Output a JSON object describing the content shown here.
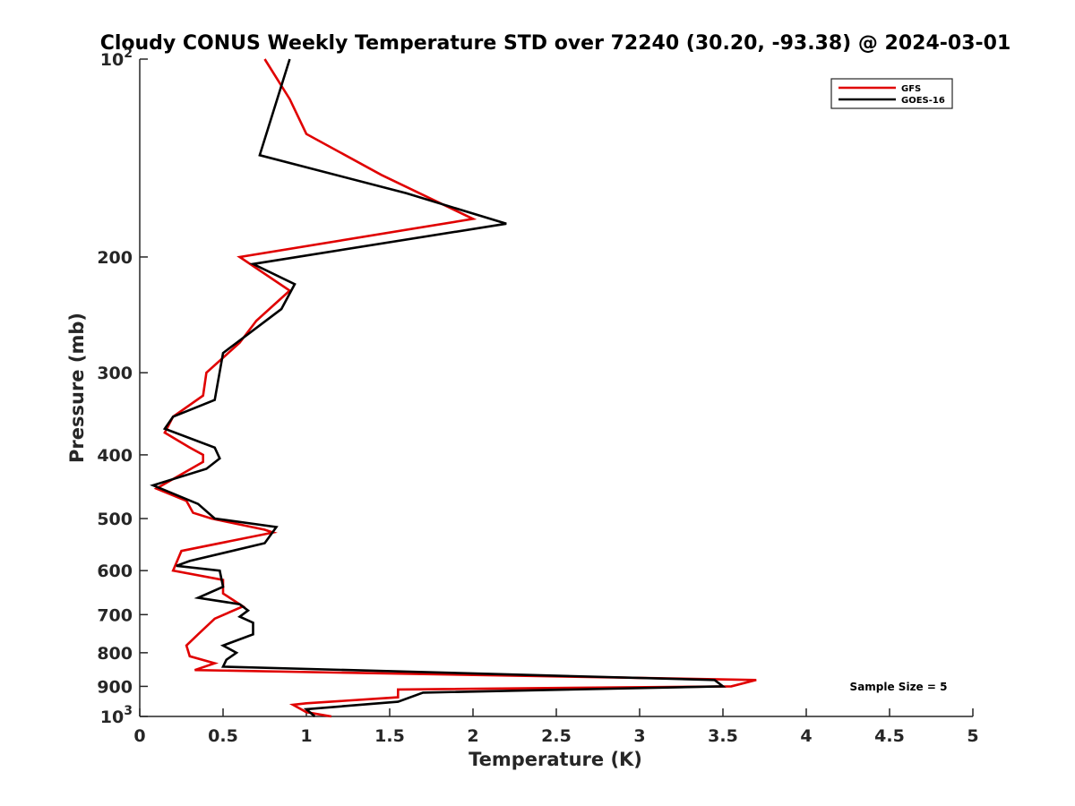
{
  "chart_data": {
    "type": "line",
    "title": "Cloudy CONUS Weekly Temperature STD over 72240 (30.20, -93.38) @ 2024-03-01",
    "xlabel": "Temperature (K)",
    "ylabel": "Pressure (mb)",
    "xlim": [
      0,
      5
    ],
    "ylim": [
      100,
      1000
    ],
    "y_scale": "log",
    "y_reversed": true,
    "x_ticks": [
      0,
      0.5,
      1,
      1.5,
      2,
      2.5,
      3,
      3.5,
      4,
      4.5,
      5
    ],
    "x_tick_labels": [
      "0",
      "0.5",
      "1",
      "1.5",
      "2",
      "2.5",
      "3",
      "3.5",
      "4",
      "4.5",
      "5"
    ],
    "y_ticks": [
      {
        "value": 100,
        "base": "10",
        "exp": "2"
      },
      {
        "value": 200,
        "label": "200"
      },
      {
        "value": 300,
        "label": "300"
      },
      {
        "value": 400,
        "label": "400"
      },
      {
        "value": 500,
        "label": "500"
      },
      {
        "value": 600,
        "label": "600"
      },
      {
        "value": 700,
        "label": "700"
      },
      {
        "value": 800,
        "label": "800"
      },
      {
        "value": 900,
        "label": "900"
      },
      {
        "value": 1000,
        "base": "10",
        "exp": "3"
      }
    ],
    "grid": false,
    "legend_position": "top-right",
    "annotation": "Sample Size = 5",
    "series": [
      {
        "name": "GFS",
        "color": "#e00000",
        "points": [
          [
            0.75,
            100
          ],
          [
            0.9,
            115
          ],
          [
            1.0,
            130
          ],
          [
            1.45,
            150
          ],
          [
            2.0,
            175
          ],
          [
            0.6,
            200
          ],
          [
            0.9,
            225
          ],
          [
            0.7,
            250
          ],
          [
            0.6,
            270
          ],
          [
            0.4,
            300
          ],
          [
            0.38,
            325
          ],
          [
            0.2,
            350
          ],
          [
            0.15,
            370
          ],
          [
            0.3,
            390
          ],
          [
            0.38,
            400
          ],
          [
            0.38,
            410
          ],
          [
            0.1,
            450
          ],
          [
            0.28,
            470
          ],
          [
            0.32,
            490
          ],
          [
            0.43,
            500
          ],
          [
            0.75,
            520
          ],
          [
            0.8,
            525
          ],
          [
            0.25,
            560
          ],
          [
            0.2,
            600
          ],
          [
            0.5,
            620
          ],
          [
            0.5,
            650
          ],
          [
            0.62,
            680
          ],
          [
            0.45,
            710
          ],
          [
            0.35,
            750
          ],
          [
            0.28,
            780
          ],
          [
            0.3,
            810
          ],
          [
            0.45,
            830
          ],
          [
            0.33,
            850
          ],
          [
            3.7,
            880
          ],
          [
            3.55,
            900
          ],
          [
            1.55,
            910
          ],
          [
            1.55,
            935
          ],
          [
            1.0,
            955
          ],
          [
            0.92,
            960
          ],
          [
            1.0,
            985
          ],
          [
            1.15,
            1000
          ]
        ]
      },
      {
        "name": "GOES-16",
        "color": "#000000",
        "points": [
          [
            0.9,
            100
          ],
          [
            0.72,
            140
          ],
          [
            1.6,
            160
          ],
          [
            2.2,
            178
          ],
          [
            0.68,
            205
          ],
          [
            0.93,
            220
          ],
          [
            0.85,
            240
          ],
          [
            0.5,
            280
          ],
          [
            0.45,
            330
          ],
          [
            0.2,
            350
          ],
          [
            0.15,
            365
          ],
          [
            0.45,
            390
          ],
          [
            0.48,
            405
          ],
          [
            0.4,
            420
          ],
          [
            0.08,
            445
          ],
          [
            0.35,
            475
          ],
          [
            0.45,
            500
          ],
          [
            0.82,
            515
          ],
          [
            0.75,
            545
          ],
          [
            0.3,
            580
          ],
          [
            0.22,
            590
          ],
          [
            0.48,
            600
          ],
          [
            0.5,
            635
          ],
          [
            0.35,
            660
          ],
          [
            0.6,
            675
          ],
          [
            0.65,
            690
          ],
          [
            0.6,
            705
          ],
          [
            0.68,
            720
          ],
          [
            0.68,
            750
          ],
          [
            0.5,
            780
          ],
          [
            0.58,
            800
          ],
          [
            0.52,
            820
          ],
          [
            0.5,
            840
          ],
          [
            3.45,
            880
          ],
          [
            3.5,
            900
          ],
          [
            1.7,
            920
          ],
          [
            1.55,
            950
          ],
          [
            1.0,
            975
          ],
          [
            1.05,
            1000
          ]
        ]
      }
    ]
  }
}
